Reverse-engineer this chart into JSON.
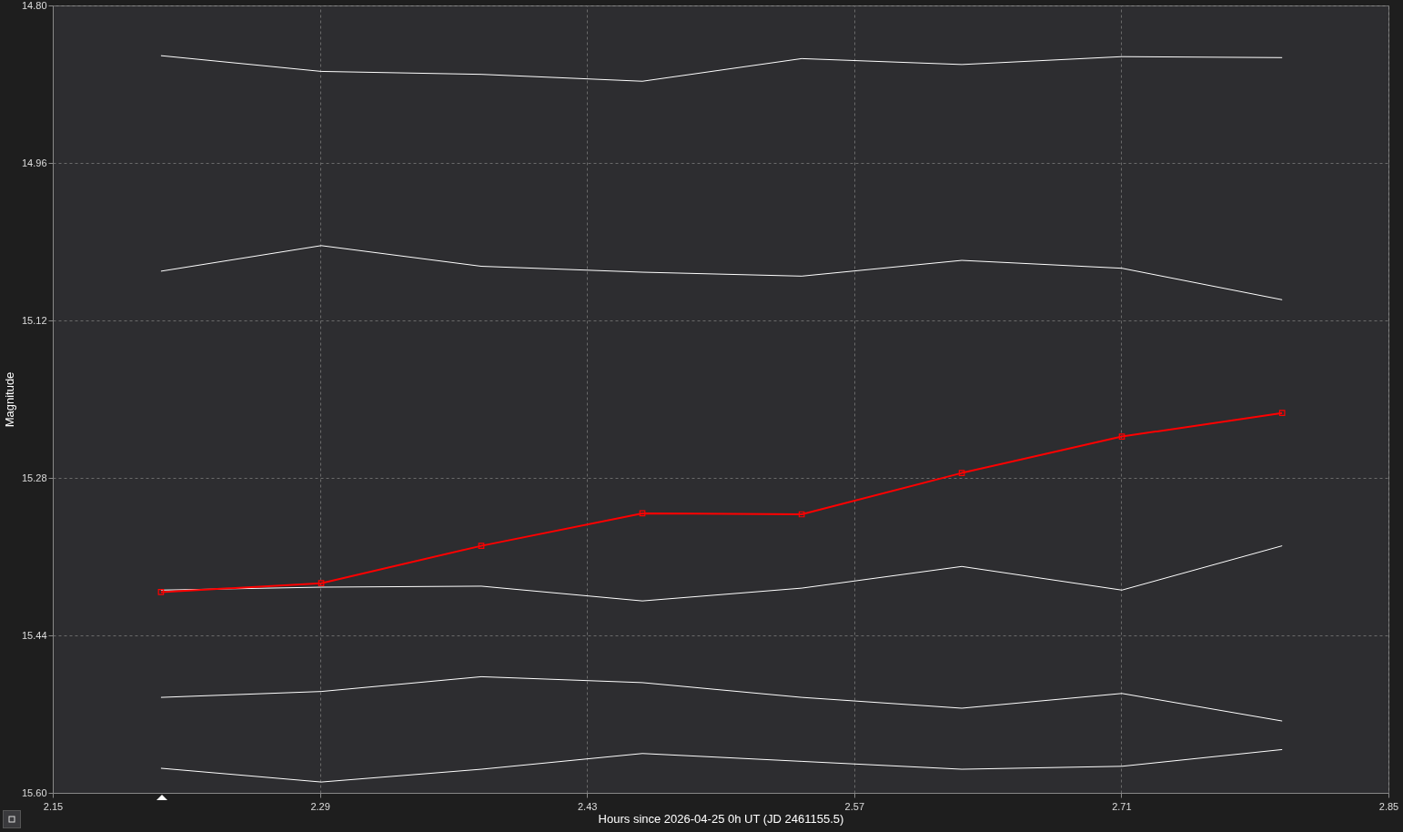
{
  "chart_data": {
    "type": "line",
    "xlabel": "Hours since 2026-04-25 0h UT (JD 2461155.5)",
    "ylabel": "Magnitude",
    "x": [
      2.2067,
      2.2907,
      2.3746,
      2.459,
      2.5425,
      2.6264,
      2.7103,
      2.7943
    ],
    "xlim": [
      2.15,
      2.85
    ],
    "xticks": [
      2.15,
      2.29,
      2.43,
      2.57,
      2.71,
      2.85
    ],
    "ylim": [
      15.6,
      14.8
    ],
    "yticks": [
      {
        "value": 14.8,
        "label": "14.80"
      },
      14.96,
      15.12,
      15.28,
      15.44,
      {
        "value": 15.6,
        "label": "15.60"
      }
    ],
    "grid": true,
    "line_style": "solid",
    "series": [
      {
        "color": "#ffffff",
        "marker": "none",
        "values": [
          14.851,
          14.867,
          14.87,
          14.877,
          14.854,
          14.86,
          14.852,
          14.853
        ]
      },
      {
        "color": "#ffffff",
        "marker": "none",
        "values": [
          15.07,
          15.044,
          15.065,
          15.071,
          15.075,
          15.059,
          15.067,
          15.099
        ]
      },
      {
        "color": "#ffffff",
        "marker": "none",
        "values": [
          15.394,
          15.391,
          15.39,
          15.405,
          15.392,
          15.37,
          15.394,
          15.349
        ]
      },
      {
        "color": "#ffffff",
        "marker": "none",
        "values": [
          15.503,
          15.497,
          15.482,
          15.488,
          15.503,
          15.514,
          15.499,
          15.527
        ]
      },
      {
        "color": "#ffffff",
        "marker": "none",
        "values": [
          15.575,
          15.589,
          15.576,
          15.56,
          15.568,
          15.576,
          15.573,
          15.556
        ]
      },
      {
        "color": "#ff0000",
        "marker": "square",
        "values": [
          15.396,
          15.387,
          15.349,
          15.316,
          15.317,
          15.275,
          15.238,
          15.214
        ]
      }
    ]
  }
}
